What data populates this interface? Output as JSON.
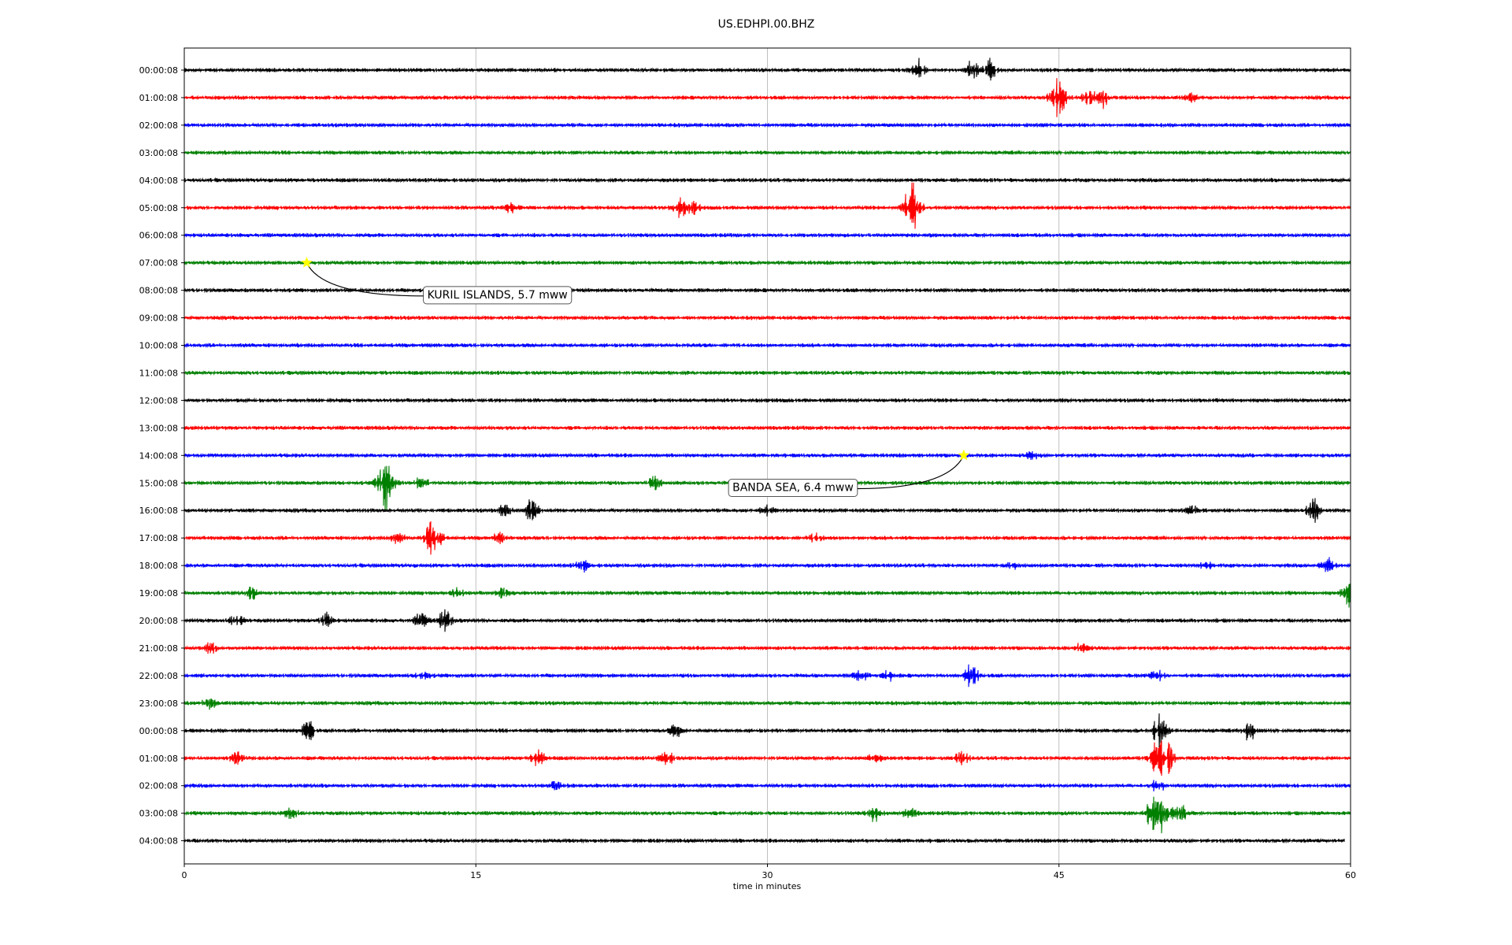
{
  "chart_data": {
    "type": "line",
    "title": "US.EDHPI.00.BHZ",
    "xlabel": "time in minutes",
    "ylabel": "",
    "xlim": [
      0,
      60
    ],
    "x_ticks": [
      "0",
      "15",
      "30",
      "45",
      "60"
    ],
    "x_tick_values": [
      0,
      15,
      30,
      45,
      60
    ],
    "grid": "vertical lines at 15, 30, 45",
    "color_cycle": [
      "#000000",
      "#ff0000",
      "#0000ff",
      "#008000"
    ],
    "rows": [
      "00:00:08",
      "01:00:08",
      "02:00:08",
      "03:00:08",
      "04:00:08",
      "05:00:08",
      "06:00:08",
      "07:00:08",
      "08:00:08",
      "09:00:08",
      "10:00:08",
      "11:00:08",
      "12:00:08",
      "13:00:08",
      "14:00:08",
      "15:00:08",
      "16:00:08",
      "17:00:08",
      "18:00:08",
      "19:00:08",
      "20:00:08",
      "21:00:08",
      "22:00:08",
      "23:00:08",
      "00:00:08",
      "01:00:08",
      "02:00:08",
      "03:00:08",
      "04:00:08"
    ],
    "last_row_end_minute": 59.7,
    "bursts": [
      {
        "row": 0,
        "minute": 37.8,
        "amp": 1.1
      },
      {
        "row": 0,
        "minute": 40.5,
        "amp": 0.9
      },
      {
        "row": 0,
        "minute": 41.5,
        "amp": 1.0
      },
      {
        "row": 1,
        "minute": 44.8,
        "amp": 1.1
      },
      {
        "row": 1,
        "minute": 45.1,
        "amp": 0.9
      },
      {
        "row": 1,
        "minute": 46.5,
        "amp": 0.6
      },
      {
        "row": 1,
        "minute": 47.2,
        "amp": 0.9
      },
      {
        "row": 1,
        "minute": 51.8,
        "amp": 0.3
      },
      {
        "row": 5,
        "minute": 16.8,
        "amp": 0.4
      },
      {
        "row": 5,
        "minute": 25.5,
        "amp": 0.8
      },
      {
        "row": 5,
        "minute": 26.2,
        "amp": 0.5
      },
      {
        "row": 5,
        "minute": 37.3,
        "amp": 1.4
      },
      {
        "row": 5,
        "minute": 37.6,
        "amp": 1.6
      },
      {
        "row": 14,
        "minute": 43.6,
        "amp": 0.3
      },
      {
        "row": 15,
        "minute": 10.2,
        "amp": 1.3
      },
      {
        "row": 15,
        "minute": 10.5,
        "amp": 1.7
      },
      {
        "row": 15,
        "minute": 12.2,
        "amp": 0.6
      },
      {
        "row": 15,
        "minute": 24.2,
        "amp": 0.6
      },
      {
        "row": 16,
        "minute": 16.5,
        "amp": 0.5
      },
      {
        "row": 16,
        "minute": 17.9,
        "amp": 1.3
      },
      {
        "row": 16,
        "minute": 30.0,
        "amp": 0.5
      },
      {
        "row": 16,
        "minute": 51.9,
        "amp": 0.3
      },
      {
        "row": 16,
        "minute": 58.1,
        "amp": 1.0
      },
      {
        "row": 17,
        "minute": 11.0,
        "amp": 0.5
      },
      {
        "row": 17,
        "minute": 12.7,
        "amp": 1.1
      },
      {
        "row": 17,
        "minute": 13.0,
        "amp": 0.9
      },
      {
        "row": 17,
        "minute": 16.2,
        "amp": 0.4
      },
      {
        "row": 17,
        "minute": 32.5,
        "amp": 0.4
      },
      {
        "row": 18,
        "minute": 20.5,
        "amp": 0.5
      },
      {
        "row": 18,
        "minute": 42.5,
        "amp": 0.4
      },
      {
        "row": 18,
        "minute": 52.5,
        "amp": 0.4
      },
      {
        "row": 18,
        "minute": 58.8,
        "amp": 0.8
      },
      {
        "row": 19,
        "minute": 3.5,
        "amp": 0.5
      },
      {
        "row": 19,
        "minute": 14.0,
        "amp": 0.4
      },
      {
        "row": 19,
        "minute": 16.5,
        "amp": 0.5
      },
      {
        "row": 19,
        "minute": 59.9,
        "amp": 1.3
      },
      {
        "row": 20,
        "minute": 2.7,
        "amp": 0.6
      },
      {
        "row": 20,
        "minute": 7.3,
        "amp": 0.7
      },
      {
        "row": 20,
        "minute": 12.2,
        "amp": 0.7
      },
      {
        "row": 20,
        "minute": 13.4,
        "amp": 0.9
      },
      {
        "row": 21,
        "minute": 1.3,
        "amp": 0.5
      },
      {
        "row": 21,
        "minute": 46.2,
        "amp": 0.5
      },
      {
        "row": 22,
        "minute": 12.3,
        "amp": 0.4
      },
      {
        "row": 22,
        "minute": 34.8,
        "amp": 0.6
      },
      {
        "row": 22,
        "minute": 36.2,
        "amp": 0.6
      },
      {
        "row": 22,
        "minute": 40.5,
        "amp": 1.2
      },
      {
        "row": 22,
        "minute": 50.0,
        "amp": 0.6
      },
      {
        "row": 23,
        "minute": 1.3,
        "amp": 0.5
      },
      {
        "row": 24,
        "minute": 6.4,
        "amp": 0.8
      },
      {
        "row": 24,
        "minute": 25.3,
        "amp": 0.5
      },
      {
        "row": 24,
        "minute": 50.1,
        "amp": 0.8
      },
      {
        "row": 24,
        "minute": 50.3,
        "amp": 1.0
      },
      {
        "row": 24,
        "minute": 54.8,
        "amp": 0.9
      },
      {
        "row": 25,
        "minute": 2.7,
        "amp": 0.5
      },
      {
        "row": 25,
        "minute": 18.2,
        "amp": 0.7
      },
      {
        "row": 25,
        "minute": 24.8,
        "amp": 0.7
      },
      {
        "row": 25,
        "minute": 35.5,
        "amp": 0.5
      },
      {
        "row": 25,
        "minute": 40.0,
        "amp": 0.6
      },
      {
        "row": 25,
        "minute": 50.0,
        "amp": 1.3
      },
      {
        "row": 25,
        "minute": 50.5,
        "amp": 2.0
      },
      {
        "row": 26,
        "minute": 19.2,
        "amp": 0.4
      },
      {
        "row": 26,
        "minute": 50.1,
        "amp": 0.6
      },
      {
        "row": 27,
        "minute": 5.5,
        "amp": 0.5
      },
      {
        "row": 27,
        "minute": 35.5,
        "amp": 0.7
      },
      {
        "row": 27,
        "minute": 37.3,
        "amp": 0.5
      },
      {
        "row": 27,
        "minute": 49.8,
        "amp": 1.3
      },
      {
        "row": 27,
        "minute": 50.3,
        "amp": 1.6
      },
      {
        "row": 27,
        "minute": 51.2,
        "amp": 1.1
      }
    ],
    "events": [
      {
        "label": "KURIL ISLANDS, 5.7 mww",
        "row": 7,
        "minute": 6.3,
        "label_row": 8.15,
        "label_minute": 12.3
      },
      {
        "label": "BANDA SEA, 6.4 mww",
        "row": 14,
        "minute": 40.1,
        "label_row": 15.15,
        "label_minute": 28.0
      }
    ]
  }
}
